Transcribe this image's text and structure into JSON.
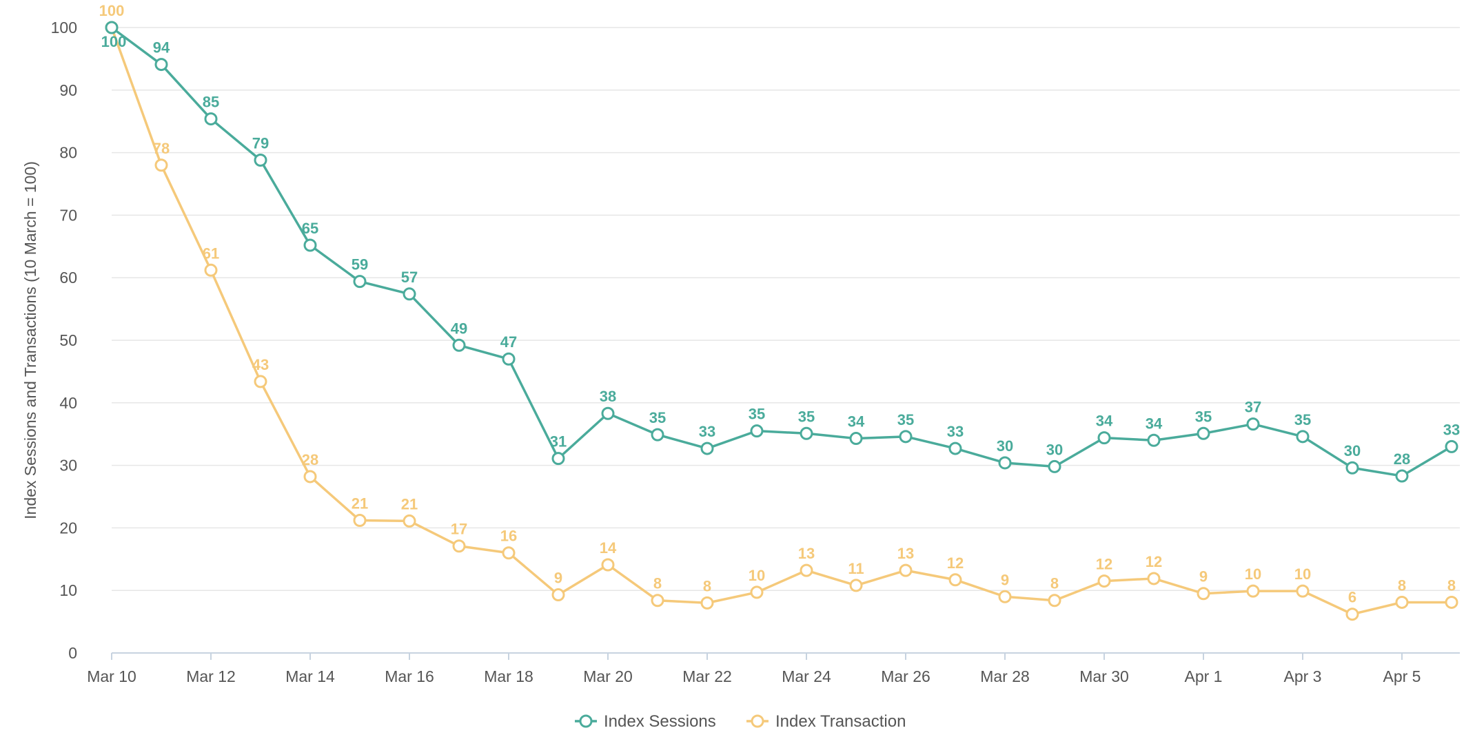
{
  "chart_data": {
    "type": "line",
    "title": "",
    "xlabel": "",
    "ylabel": "Index Sessions and Transactions (10 March = 100)",
    "ylim": [
      0,
      100
    ],
    "yticks": [
      0,
      10,
      20,
      30,
      40,
      50,
      60,
      70,
      80,
      90,
      100
    ],
    "grid": true,
    "legend_position": "bottom-center",
    "categories": [
      "Mar 10",
      "Mar 11",
      "Mar 12",
      "Mar 13",
      "Mar 14",
      "Mar 15",
      "Mar 16",
      "Mar 17",
      "Mar 18",
      "Mar 19",
      "Mar 20",
      "Mar 21",
      "Mar 22",
      "Mar 23",
      "Mar 24",
      "Mar 25",
      "Mar 26",
      "Mar 27",
      "Mar 28",
      "Mar 29",
      "Mar 30",
      "Mar 31",
      "Apr 1",
      "Apr 2",
      "Apr 3",
      "Apr 4",
      "Apr 5",
      "Apr 6"
    ],
    "xtick_labels": [
      "Mar 10",
      "Mar 12",
      "Mar 14",
      "Mar 16",
      "Mar 18",
      "Mar 20",
      "Mar 22",
      "Mar 24",
      "Mar 26",
      "Mar 28",
      "Mar 30",
      "Apr 1",
      "Apr 3",
      "Apr 5"
    ],
    "series": [
      {
        "name": "Index Sessions",
        "color": "#4aab9b",
        "values": [
          100,
          94.1,
          85.4,
          78.8,
          65.2,
          59.4,
          57.4,
          49.2,
          47.0,
          31.1,
          38.3,
          34.9,
          32.7,
          35.5,
          35.1,
          34.3,
          34.6,
          32.7,
          30.4,
          29.8,
          34.4,
          34.0,
          35.1,
          36.6,
          34.6,
          29.6,
          28.3,
          33.0
        ],
        "labels": [
          "100",
          "94",
          "85",
          "79",
          "65",
          "59",
          "57",
          "49",
          "47",
          "31",
          "38",
          "35",
          "33",
          "35",
          "35",
          "34",
          "35",
          "33",
          "30",
          "30",
          "34",
          "34",
          "35",
          "37",
          "35",
          "30",
          "28",
          "33"
        ]
      },
      {
        "name": "Index Transaction",
        "color": "#f5c97a",
        "values": [
          100,
          78.0,
          61.2,
          43.4,
          28.2,
          21.2,
          21.1,
          17.1,
          16.0,
          9.3,
          14.1,
          8.4,
          8.0,
          9.7,
          13.2,
          10.8,
          13.2,
          11.7,
          9.0,
          8.4,
          11.5,
          11.9,
          9.5,
          9.9,
          9.9,
          6.2,
          8.1,
          8.1
        ],
        "labels": [
          "100",
          "78",
          "61",
          "43",
          "28",
          "21",
          "21",
          "17",
          "16",
          "9",
          "14",
          "8",
          "8",
          "10",
          "13",
          "11",
          "13",
          "12",
          "9",
          "8",
          "12",
          "12",
          "9",
          "10",
          "10",
          "6",
          "8",
          "8"
        ]
      }
    ]
  }
}
